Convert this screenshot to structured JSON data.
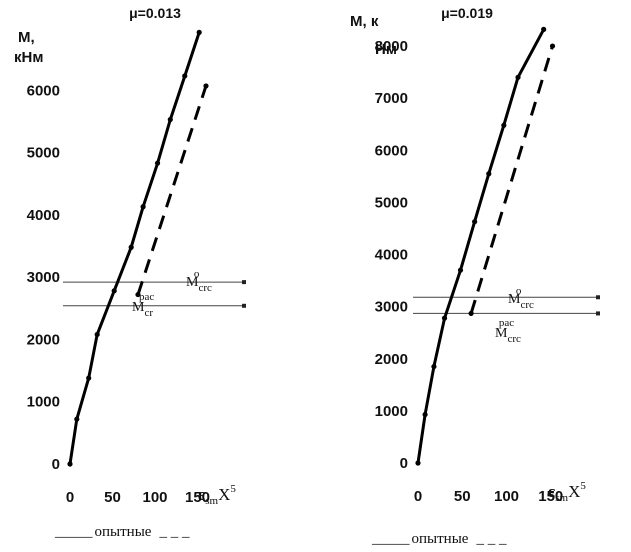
{
  "chart_data": [
    {
      "type": "line",
      "title": "μ=0.013",
      "ylabel_line1": "M,",
      "ylabel_line2": "кНм",
      "xlabel_main": "ε",
      "xlabel_sub": "sm",
      "xlabel_tail": "X",
      "xlabel_exp": "5",
      "ylim": [
        0,
        7000
      ],
      "xlim": [
        0,
        200
      ],
      "yticks": [
        0,
        1000,
        2000,
        3000,
        4000,
        5000,
        6000
      ],
      "ytick_labels": [
        "0",
        "1000",
        "2000",
        "3000",
        "4000",
        "5000",
        "6000"
      ],
      "xticks": [
        0,
        50,
        100,
        150
      ],
      "xtick_labels": [
        "0",
        "50",
        "100",
        "150"
      ],
      "grid": false,
      "series": [
        {
          "style": "solid",
          "x": [
            0,
            8,
            22,
            32,
            52,
            72,
            86,
            103,
            118,
            135,
            152
          ],
          "y": [
            0,
            720,
            1380,
            2080,
            2780,
            3480,
            4130,
            4830,
            5530,
            6230,
            6930
          ]
        },
        {
          "style": "dashed",
          "x": [
            80,
            160
          ],
          "y": [
            2720,
            6070
          ]
        }
      ],
      "hlines": [
        2920,
        2540
      ],
      "annotations": [
        {
          "main": "M",
          "sub": "crc",
          "sup": "o",
          "level": 2920
        },
        {
          "main": "M",
          "sub": "cr",
          "sup": "pac",
          "level": 2540
        }
      ]
    },
    {
      "type": "line",
      "title": "μ=0.019",
      "ylabel_line1": "M, к",
      "ylabel_line2": "Нм",
      "xlabel_main": "ε",
      "xlabel_sub": "sm",
      "xlabel_tail": "X",
      "xlabel_exp": "5",
      "ylim": [
        0,
        8500
      ],
      "xlim": [
        0,
        200
      ],
      "yticks": [
        0,
        1000,
        2000,
        3000,
        4000,
        5000,
        6000,
        7000,
        8000
      ],
      "ytick_labels": [
        "0",
        "1000",
        "2000",
        "3000",
        "4000",
        "5000",
        "6000",
        "7000",
        "8000"
      ],
      "xticks": [
        0,
        50,
        100,
        150
      ],
      "xtick_labels": [
        "0",
        "50",
        "100",
        "150"
      ],
      "grid": false,
      "series": [
        {
          "style": "solid",
          "x": [
            0,
            8,
            18,
            30,
            48,
            64,
            80,
            97,
            113,
            142
          ],
          "y": [
            0,
            930,
            1850,
            2780,
            3700,
            4630,
            5550,
            6480,
            7400,
            8320
          ]
        },
        {
          "style": "dashed",
          "x": [
            60,
            152
          ],
          "y": [
            2870,
            8000
          ]
        }
      ],
      "hlines": [
        3180,
        2870
      ],
      "annotations": [
        {
          "main": "M",
          "sub": "crc",
          "sup": "o",
          "level": 3180
        },
        {
          "main": "M",
          "sub": "crc",
          "sup": "pac",
          "level": 2870
        }
      ]
    }
  ],
  "legend": {
    "left": {
      "prefix": "_____",
      "label": "опытные",
      "suffix": "_ _ _"
    },
    "right": {
      "prefix": "_____",
      "label": "опытные",
      "suffix": "_ _ _"
    }
  }
}
